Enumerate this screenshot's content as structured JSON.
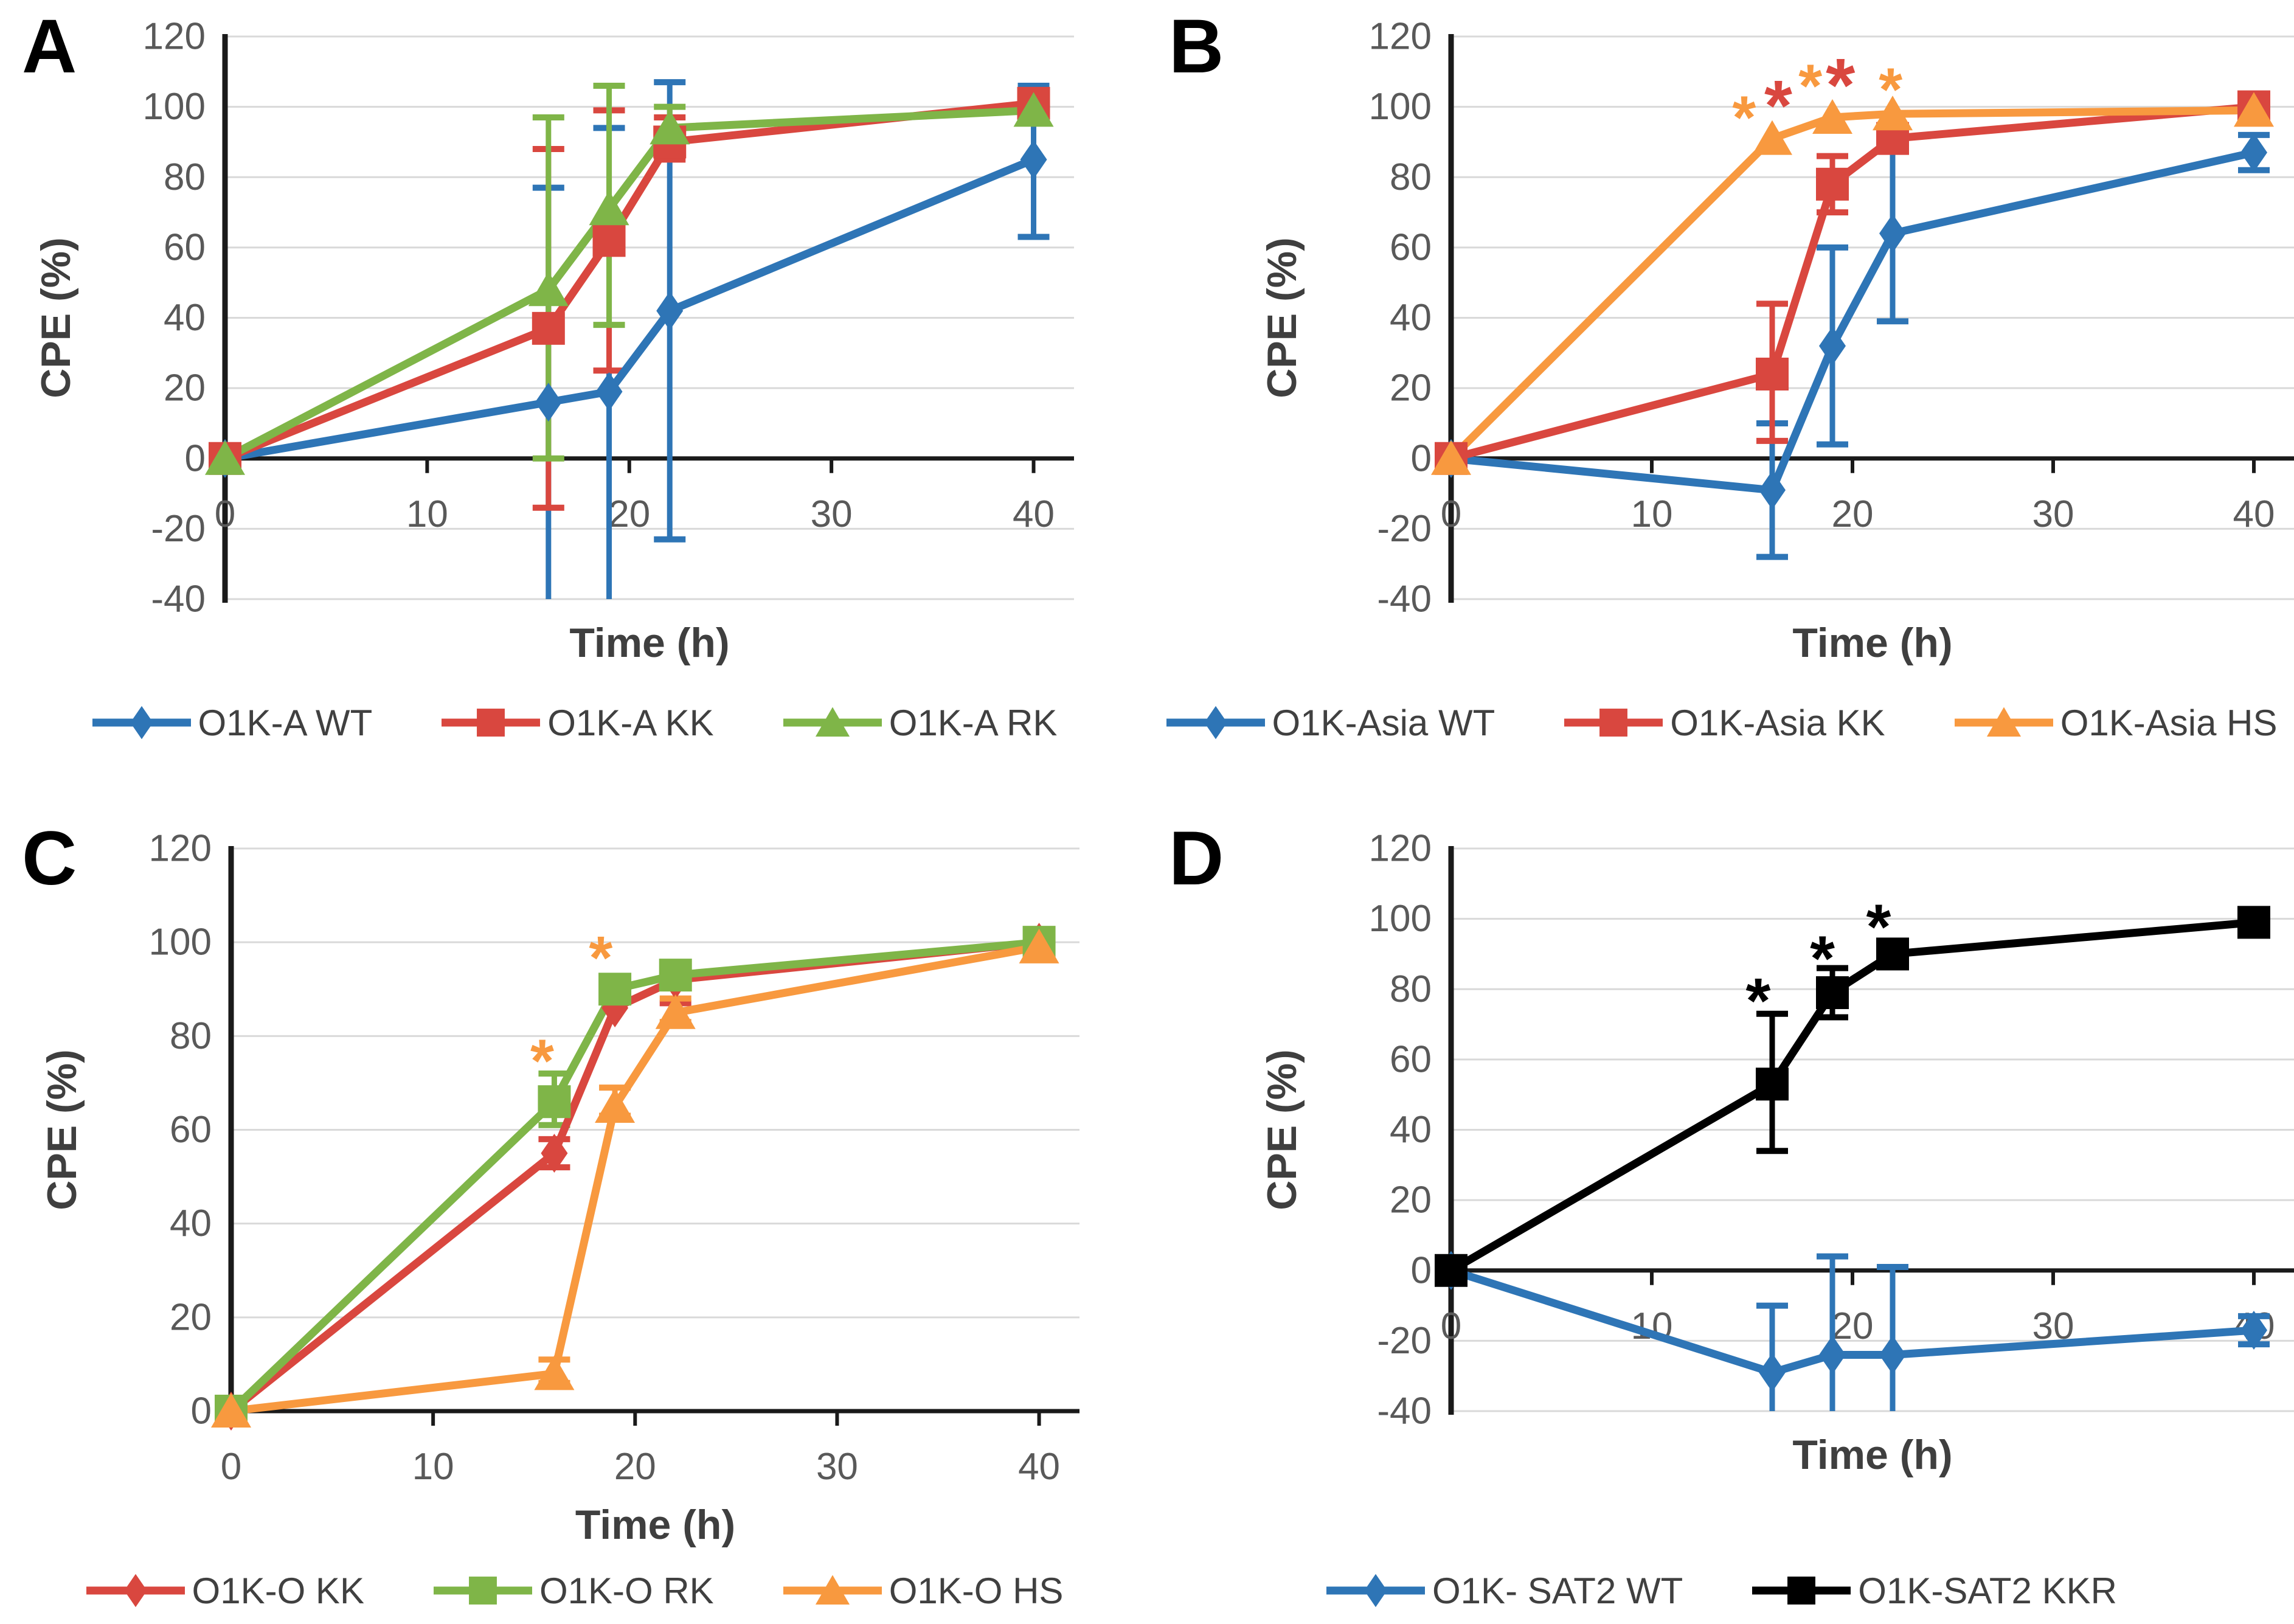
{
  "colors": {
    "blue": "#2E75B6",
    "red": "#D9473F",
    "green": "#7FB548",
    "orange": "#F8993F",
    "black": "#000000",
    "grid": "#D9D9D9",
    "axis": "#1A1A1A",
    "tick_text": "#595959",
    "axis_title": "#3F3F3F",
    "legend_text": "#404040",
    "background": "#FFFFFF"
  },
  "chart_data": [
    {
      "panel": "A",
      "type": "line",
      "xlabel": "Time (h)",
      "ylabel": "CPE (%)",
      "x_ticks": [
        0,
        10,
        20,
        30,
        40
      ],
      "y_ticks": [
        -40,
        -20,
        0,
        20,
        40,
        60,
        80,
        100,
        120
      ],
      "xlim": [
        0,
        42
      ],
      "ylim": [
        -40,
        120
      ],
      "grid": true,
      "legend_position": "bottom",
      "x": [
        0,
        16,
        19,
        22,
        40
      ],
      "series": [
        {
          "name": "O1K-A WT",
          "color": "blue",
          "marker": "diamond",
          "y": [
            0,
            16,
            19,
            42,
            85
          ],
          "err_up": [
            0,
            61,
            75,
            65,
            21
          ],
          "err_down": [
            0,
            70,
            75,
            65,
            22
          ]
        },
        {
          "name": "O1K-A KK",
          "color": "red",
          "marker": "square",
          "y": [
            0,
            37,
            62,
            90,
            101
          ],
          "err_up": [
            0,
            51,
            37,
            7,
            0
          ],
          "err_down": [
            0,
            51,
            37,
            5,
            0
          ]
        },
        {
          "name": "O1K-A RK",
          "color": "green",
          "marker": "triangle",
          "y": [
            0,
            48,
            71,
            94,
            99
          ],
          "err_up": [
            0,
            49,
            35,
            6,
            0
          ],
          "err_down": [
            0,
            48,
            33,
            6,
            0
          ]
        }
      ],
      "annotations": []
    },
    {
      "panel": "B",
      "type": "line",
      "xlabel": "Time (h)",
      "ylabel": "CPE (%)",
      "x_ticks": [
        0,
        10,
        20,
        30,
        40
      ],
      "y_ticks": [
        -40,
        -20,
        0,
        20,
        40,
        60,
        80,
        100,
        120
      ],
      "xlim": [
        0,
        42
      ],
      "ylim": [
        -40,
        120
      ],
      "grid": true,
      "legend_position": "bottom",
      "x": [
        0,
        16,
        19,
        22,
        40
      ],
      "series": [
        {
          "name": "O1K-Asia WT",
          "color": "blue",
          "marker": "diamond",
          "y": [
            0,
            -9,
            32,
            64,
            87
          ],
          "err_up": [
            0,
            19,
            28,
            26,
            5
          ],
          "err_down": [
            0,
            19,
            28,
            25,
            5
          ]
        },
        {
          "name": "O1K-Asia KK",
          "color": "red",
          "marker": "square",
          "y": [
            0,
            24,
            78,
            91,
            100
          ],
          "err_up": [
            0,
            20,
            8,
            0,
            0
          ],
          "err_down": [
            0,
            19,
            8,
            0,
            0
          ]
        },
        {
          "name": "O1K-Asia HS",
          "color": "orange",
          "marker": "triangle",
          "y": [
            0,
            91,
            97,
            98,
            99
          ],
          "err_up": [
            0,
            0,
            0,
            0,
            0
          ],
          "err_down": [
            0,
            0,
            0,
            0,
            0
          ]
        }
      ],
      "annotations": [
        {
          "x": 14.6,
          "y": 100,
          "text": "*",
          "color": "orange",
          "size": 100
        },
        {
          "x": 16.3,
          "y": 104,
          "text": "*",
          "color": "red",
          "size": 118
        },
        {
          "x": 17.9,
          "y": 109,
          "text": "*",
          "color": "orange",
          "size": 100
        },
        {
          "x": 19.4,
          "y": 110,
          "text": "*",
          "color": "red",
          "size": 124
        },
        {
          "x": 21.9,
          "y": 108,
          "text": "*",
          "color": "orange",
          "size": 100
        }
      ]
    },
    {
      "panel": "C",
      "type": "line",
      "xlabel": "Time (h)",
      "ylabel": "CPE (%)",
      "x_ticks": [
        0,
        10,
        20,
        30,
        40
      ],
      "y_ticks": [
        0,
        20,
        40,
        60,
        80,
        100,
        120
      ],
      "xlim": [
        0,
        42
      ],
      "ylim": [
        0,
        120
      ],
      "grid": true,
      "legend_position": "bottom",
      "x": [
        0,
        16,
        19,
        22,
        40
      ],
      "series": [
        {
          "name": "O1K-O KK",
          "color": "red",
          "marker": "diamond",
          "y": [
            0,
            55,
            86,
            92,
            100
          ],
          "err_up": [
            0,
            3,
            0,
            2,
            0
          ],
          "err_down": [
            0,
            3,
            0,
            5,
            0
          ]
        },
        {
          "name": "O1K-O RK",
          "color": "green",
          "marker": "square",
          "y": [
            0,
            66,
            90,
            93,
            100
          ],
          "err_up": [
            0,
            6,
            0,
            0,
            0
          ],
          "err_down": [
            0,
            5,
            0,
            0,
            0
          ]
        },
        {
          "name": "O1K-O HS",
          "color": "orange",
          "marker": "triangle",
          "y": [
            0,
            8,
            65,
            85,
            99
          ],
          "err_up": [
            0,
            3,
            4,
            3,
            0
          ],
          "err_down": [
            0,
            2,
            2,
            2,
            0
          ]
        }
      ],
      "annotations": [
        {
          "x": 15.4,
          "y": 77,
          "text": "*",
          "color": "orange",
          "size": 100
        },
        {
          "x": 18.3,
          "y": 99,
          "text": "*",
          "color": "orange",
          "size": 100
        }
      ]
    },
    {
      "panel": "D",
      "type": "line",
      "xlabel": "Time (h)",
      "ylabel": "CPE (%)",
      "x_ticks": [
        0,
        10,
        20,
        30,
        40
      ],
      "y_ticks": [
        -40,
        -20,
        0,
        20,
        40,
        60,
        80,
        100,
        120
      ],
      "xlim": [
        0,
        42
      ],
      "ylim": [
        -40,
        120
      ],
      "grid": true,
      "legend_position": "bottom",
      "x": [
        0,
        16,
        19,
        22,
        40
      ],
      "series": [
        {
          "name": "O1K- SAT2 WT",
          "color": "blue",
          "marker": "diamond",
          "y": [
            0,
            -29,
            -24,
            -24,
            -17
          ],
          "err_up": [
            0,
            19,
            28,
            25,
            4
          ],
          "err_down": [
            0,
            25,
            30,
            30,
            4
          ]
        },
        {
          "name": "O1K-SAT2 KKR",
          "color": "black",
          "marker": "square",
          "y": [
            0,
            53,
            79,
            90,
            99
          ],
          "err_up": [
            0,
            20,
            7,
            3,
            0
          ],
          "err_down": [
            0,
            19,
            7,
            3,
            0
          ]
        }
      ],
      "annotations": [
        {
          "x": 15.3,
          "y": 80,
          "text": "*",
          "color": "black",
          "size": 105
        },
        {
          "x": 18.5,
          "y": 92,
          "text": "*",
          "color": "black",
          "size": 105
        },
        {
          "x": 21.3,
          "y": 101,
          "text": "*",
          "color": "black",
          "size": 105
        }
      ]
    }
  ]
}
